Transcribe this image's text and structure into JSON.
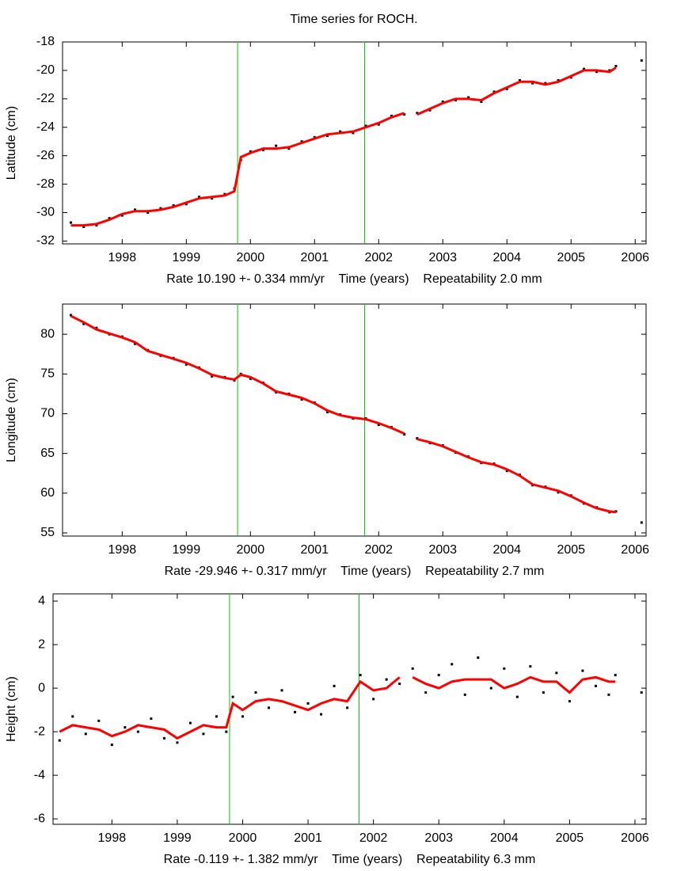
{
  "chart_data": [
    {
      "type": "line",
      "title": "Time series for ROCH.",
      "ylabel": "Latitude (cm)",
      "xlabel": "Rate 10.190 +- 0.334 mm/yr    Time (years)    Repeatability 2.0 mm",
      "x": [
        1997.2,
        1997.4,
        1997.6,
        1997.8,
        1998.0,
        1998.2,
        1998.4,
        1998.6,
        1998.8,
        1999.0,
        1999.2,
        1999.4,
        1999.6,
        1999.75,
        1999.85,
        2000.0,
        2000.2,
        2000.4,
        2000.6,
        2000.8,
        2001.0,
        2001.2,
        2001.4,
        2001.6,
        2001.8,
        2002.0,
        2002.2,
        2002.4,
        2002.45,
        2002.6,
        2002.8,
        2003.0,
        2003.2,
        2003.4,
        2003.6,
        2003.8,
        2004.0,
        2004.2,
        2004.4,
        2004.6,
        2004.8,
        2005.0,
        2005.2,
        2005.4,
        2005.6,
        2005.7,
        2005.9,
        2006.1
      ],
      "series": [
        {
          "color": "#000000",
          "style": "points",
          "values": [
            -30.7,
            -31.0,
            -30.9,
            -30.4,
            -30.2,
            -29.8,
            -30.0,
            -29.7,
            -29.5,
            -29.4,
            -28.9,
            -29.0,
            -28.7,
            -28.3,
            -26.3,
            -25.7,
            -25.6,
            -25.3,
            -25.5,
            -25.0,
            -24.7,
            -24.6,
            -24.3,
            -24.4,
            -23.9,
            -23.8,
            -23.2,
            -23.1,
            null,
            -23.0,
            -22.8,
            -22.2,
            -22.1,
            -21.9,
            -22.2,
            -21.5,
            -21.3,
            -20.7,
            -20.9,
            -20.9,
            -20.7,
            -20.5,
            -19.9,
            -20.1,
            -20.0,
            -19.7,
            null,
            -19.3
          ]
        },
        {
          "color": "#ff0000",
          "style": "line",
          "values": [
            -30.9,
            -30.9,
            -30.8,
            -30.5,
            -30.1,
            -29.9,
            -29.9,
            -29.8,
            -29.6,
            -29.3,
            -29.0,
            -28.9,
            -28.8,
            -28.5,
            -26.1,
            -25.8,
            -25.5,
            -25.5,
            -25.4,
            -25.1,
            -24.8,
            -24.5,
            -24.4,
            -24.3,
            -24.0,
            -23.7,
            -23.3,
            -23.0,
            null,
            -23.1,
            -22.7,
            -22.3,
            -22.0,
            -22.0,
            -22.1,
            -21.6,
            -21.2,
            -20.8,
            -20.8,
            -21.0,
            -20.8,
            -20.4,
            -20.0,
            -20.0,
            -20.1,
            -19.8,
            null,
            null
          ]
        }
      ],
      "vlines": [
        1999.8,
        2001.78
      ],
      "vline_color": "#00cc00",
      "xlim": [
        1997.07,
        2006.17
      ],
      "xticks": [
        1998,
        1999,
        2000,
        2001,
        2002,
        2003,
        2004,
        2005,
        2006
      ],
      "ylim": [
        -32.2,
        -18
      ],
      "yticks": [
        -32,
        -30,
        -28,
        -26,
        -24,
        -22,
        -20,
        -18
      ]
    },
    {
      "type": "line",
      "ylabel": "Longitude (cm)",
      "xlabel": "Rate -29.946 +- 0.317 mm/yr    Time (years)    Repeatability 2.7 mm",
      "x": [
        1997.2,
        1997.4,
        1997.6,
        1997.8,
        1998.0,
        1998.2,
        1998.4,
        1998.6,
        1998.8,
        1999.0,
        1999.2,
        1999.4,
        1999.6,
        1999.75,
        1999.85,
        2000.0,
        2000.2,
        2000.4,
        2000.6,
        2000.8,
        2001.0,
        2001.2,
        2001.4,
        2001.6,
        2001.8,
        2002.0,
        2002.2,
        2002.4,
        2002.45,
        2002.6,
        2002.8,
        2003.0,
        2003.2,
        2003.4,
        2003.6,
        2003.8,
        2004.0,
        2004.2,
        2004.4,
        2004.6,
        2004.8,
        2005.0,
        2005.2,
        2005.4,
        2005.6,
        2005.7,
        2005.9,
        2006.1
      ],
      "series": [
        {
          "color": "#000000",
          "style": "points",
          "values": [
            82.4,
            81.3,
            80.8,
            80.0,
            79.7,
            78.8,
            78.0,
            77.3,
            77.0,
            76.2,
            75.8,
            74.7,
            74.6,
            74.2,
            75.0,
            74.4,
            73.9,
            72.7,
            72.5,
            71.8,
            71.4,
            70.2,
            69.9,
            69.4,
            69.4,
            68.6,
            68.3,
            67.4,
            null,
            66.9,
            66.3,
            66.0,
            65.1,
            64.6,
            63.8,
            63.7,
            62.8,
            62.3,
            61.0,
            60.8,
            60.1,
            59.7,
            58.7,
            58.2,
            57.6,
            57.7,
            null,
            56.3
          ]
        },
        {
          "color": "#ff0000",
          "style": "line",
          "values": [
            82.3,
            81.5,
            80.6,
            80.1,
            79.6,
            79.0,
            77.9,
            77.4,
            76.9,
            76.4,
            75.7,
            74.9,
            74.5,
            74.3,
            74.9,
            74.6,
            73.8,
            72.8,
            72.4,
            72.0,
            71.3,
            70.4,
            69.8,
            69.5,
            69.3,
            68.8,
            68.2,
            67.5,
            null,
            66.8,
            66.4,
            65.9,
            65.2,
            64.5,
            63.9,
            63.6,
            63.0,
            62.2,
            61.1,
            60.7,
            60.3,
            59.6,
            58.8,
            58.1,
            57.7,
            57.6,
            null,
            null
          ]
        }
      ],
      "vlines": [
        1999.8,
        2001.78
      ],
      "vline_color": "#00cc00",
      "xlim": [
        1997.07,
        2006.17
      ],
      "xticks": [
        1998,
        1999,
        2000,
        2001,
        2002,
        2003,
        2004,
        2005,
        2006
      ],
      "ylim": [
        54.6,
        83.8
      ],
      "yticks": [
        55,
        60,
        65,
        70,
        75,
        80
      ]
    },
    {
      "type": "line",
      "ylabel": "Height (cm)",
      "xlabel": "Rate -0.119 +- 1.382 mm/yr    Time (years)    Repeatability 6.3 mm",
      "x": [
        1997.2,
        1997.4,
        1997.6,
        1997.8,
        1998.0,
        1998.2,
        1998.4,
        1998.6,
        1998.8,
        1999.0,
        1999.2,
        1999.4,
        1999.6,
        1999.75,
        1999.85,
        2000.0,
        2000.2,
        2000.4,
        2000.6,
        2000.8,
        2001.0,
        2001.2,
        2001.4,
        2001.6,
        2001.8,
        2002.0,
        2002.2,
        2002.4,
        2002.45,
        2002.6,
        2002.8,
        2003.0,
        2003.2,
        2003.4,
        2003.6,
        2003.8,
        2004.0,
        2004.2,
        2004.4,
        2004.6,
        2004.8,
        2005.0,
        2005.2,
        2005.4,
        2005.6,
        2005.7,
        2005.9,
        2006.1
      ],
      "series": [
        {
          "color": "#000000",
          "style": "points",
          "values": [
            -2.4,
            -1.3,
            -2.1,
            -1.5,
            -2.6,
            -1.8,
            -2.0,
            -1.4,
            -2.3,
            -2.5,
            -1.6,
            -2.1,
            -1.3,
            -2.0,
            -0.4,
            -1.3,
            -0.2,
            -0.9,
            -0.1,
            -1.1,
            -0.7,
            -1.2,
            0.1,
            -0.9,
            0.6,
            -0.5,
            0.4,
            0.2,
            null,
            0.9,
            -0.2,
            0.6,
            1.1,
            -0.3,
            1.4,
            0.0,
            0.9,
            -0.4,
            1.0,
            -0.2,
            0.7,
            -0.6,
            0.8,
            0.1,
            -0.3,
            0.6,
            null,
            -0.2
          ]
        },
        {
          "color": "#ff0000",
          "style": "line",
          "values": [
            -2.0,
            -1.7,
            -1.8,
            -1.9,
            -2.2,
            -2.0,
            -1.7,
            -1.8,
            -1.9,
            -2.3,
            -2.0,
            -1.7,
            -1.8,
            -1.8,
            -0.7,
            -1.0,
            -0.6,
            -0.5,
            -0.6,
            -0.8,
            -1.0,
            -0.7,
            -0.5,
            -0.6,
            0.3,
            -0.1,
            0.0,
            0.5,
            null,
            0.5,
            0.2,
            0.0,
            0.3,
            0.4,
            0.4,
            0.4,
            0.0,
            0.2,
            0.5,
            0.3,
            0.3,
            -0.2,
            0.4,
            0.5,
            0.3,
            0.3,
            null,
            null
          ]
        }
      ],
      "vlines": [
        1999.8,
        2001.78
      ],
      "vline_color": "#00cc00",
      "xlim": [
        1997.1,
        2006.17
      ],
      "xticks": [
        1998,
        1999,
        2000,
        2001,
        2002,
        2003,
        2004,
        2005,
        2006
      ],
      "ylim": [
        -6.25,
        4.33
      ],
      "yticks": [
        -6,
        -4,
        -2,
        0,
        2,
        4
      ]
    }
  ]
}
